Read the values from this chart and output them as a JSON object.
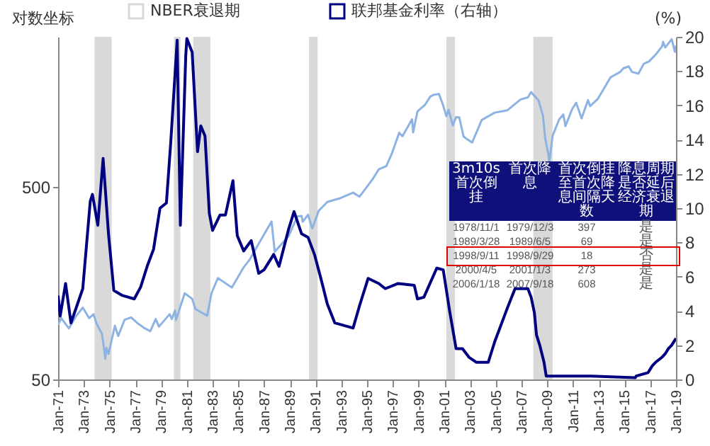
{
  "chart_data": {
    "type": "line",
    "ylabel": "对数坐标",
    "y2label": "(%)",
    "legend": "top",
    "log": "y",
    "xlim": [
      "1971-01",
      "2019-01"
    ],
    "xticks": [
      {
        "value": "1971-01",
        "label": "Jan-71"
      },
      {
        "value": "1973-01",
        "label": "Jan-73"
      },
      {
        "value": "1975-01",
        "label": "Jan-75"
      },
      {
        "value": "1977-01",
        "label": "Jan-77"
      },
      {
        "value": "1979-01",
        "label": "Jan-79"
      },
      {
        "value": "1981-01",
        "label": "Jan-81"
      },
      {
        "value": "1983-01",
        "label": "Jan-83"
      },
      {
        "value": "1985-01",
        "label": "Jan-85"
      },
      {
        "value": "1987-01",
        "label": "Jan-87"
      },
      {
        "value": "1989-01",
        "label": "Jan-89"
      },
      {
        "value": "1991-01",
        "label": "Jan-91"
      },
      {
        "value": "1993-01",
        "label": "Jan-93"
      },
      {
        "value": "1995-01",
        "label": "Jan-95"
      },
      {
        "value": "1997-01",
        "label": "Jan-97"
      },
      {
        "value": "1999-01",
        "label": "Jan-99"
      },
      {
        "value": "2001-01",
        "label": "Jan-01"
      },
      {
        "value": "2003-01",
        "label": "Jan-03"
      },
      {
        "value": "2005-01",
        "label": "Jan-05"
      },
      {
        "value": "2007-01",
        "label": "Jan-07"
      },
      {
        "value": "2009-01",
        "label": "Jan-09"
      },
      {
        "value": "2011-01",
        "label": "Jan-11"
      },
      {
        "value": "2013-01",
        "label": "Jan-13"
      },
      {
        "value": "2015-01",
        "label": "Jan-15"
      },
      {
        "value": "2017-01",
        "label": "Jan-17"
      },
      {
        "value": "2019-01",
        "label": "Jan-19"
      }
    ],
    "ylim": [
      50,
      3000
    ],
    "yticks": [
      50,
      500
    ],
    "y2lim": [
      0,
      20
    ],
    "y2ticks": [
      0,
      2,
      4,
      6,
      8,
      10,
      12,
      14,
      16,
      18,
      20
    ],
    "bands": [
      {
        "axis": "x",
        "from": "1973-11",
        "to": "1975-03",
        "label": "NBER衰退期",
        "color": "#d9d9d9"
      },
      {
        "axis": "x",
        "from": "1980-01",
        "to": "1980-07",
        "color": "#d9d9d9"
      },
      {
        "axis": "x",
        "from": "1981-07",
        "to": "1982-11",
        "color": "#d9d9d9"
      },
      {
        "axis": "x",
        "from": "1990-07",
        "to": "1991-03",
        "color": "#d9d9d9"
      },
      {
        "axis": "x",
        "from": "2001-03",
        "to": "2001-11",
        "color": "#d9d9d9"
      },
      {
        "axis": "x",
        "from": "2007-12",
        "to": "2009-06",
        "color": "#d9d9d9"
      }
    ],
    "series": [
      {
        "color": "#8db3e2",
        "x": [
          "1971-01",
          "1971-04",
          "1971-11",
          "1972-06",
          "1972-12",
          "1973-06",
          "1973-10",
          "1974-01",
          "1974-06",
          "1974-09",
          "1974-10",
          "1974-12",
          "1975-06",
          "1975-09",
          "1976-03",
          "1976-09",
          "1977-03",
          "1977-10",
          "1978-03",
          "1978-08",
          "1978-11",
          "1979-09",
          "1979-11",
          "1980-02",
          "1980-03",
          "1980-11",
          "1981-06",
          "1981-09",
          "1982-03",
          "1982-08",
          "1982-12",
          "1983-06",
          "1984-07",
          "1985-06",
          "1985-12",
          "1986-08",
          "1987-08",
          "1987-11",
          "1988-12",
          "1989-08",
          "1989-12",
          "1990-01",
          "1990-06",
          "1990-10",
          "1991-04",
          "1991-12",
          "1992-12",
          "1993-12",
          "1994-06",
          "1995-06",
          "1995-12",
          "1996-07",
          "1996-12",
          "1997-07",
          "1997-10",
          "1998-07",
          "1998-08",
          "1998-12",
          "1999-07",
          "1999-12",
          "2000-03",
          "2000-08",
          "2000-12",
          "2001-03",
          "2001-05",
          "2001-09",
          "2001-12",
          "2002-03",
          "2002-07",
          "2002-10",
          "2003-03",
          "2003-12",
          "2004-12",
          "2005-12",
          "2006-12",
          "2007-07",
          "2007-10",
          "2008-05",
          "2008-09",
          "2008-11",
          "2009-02",
          "2009-03",
          "2009-06",
          "2009-12",
          "2010-04",
          "2010-06",
          "2010-12",
          "2011-04",
          "2011-09",
          "2012-03",
          "2012-05",
          "2012-12",
          "2013-12",
          "2014-09",
          "2014-12",
          "2015-05",
          "2015-08",
          "2016-02",
          "2016-07",
          "2016-12",
          "2017-06",
          "2017-12",
          "2018-01",
          "2018-03",
          "2018-09",
          "2018-12",
          "2019-01"
        ],
        "values": [
          96,
          104,
          92,
          107,
          118,
          104,
          109,
          97,
          86,
          64,
          73,
          68,
          95,
          84,
          102,
          105,
          98,
          92,
          89,
          103,
          94,
          109,
          103,
          114,
          102,
          140,
          131,
          116,
          111,
          107,
          140,
          168,
          150,
          191,
          211,
          253,
          330,
          230,
          278,
          351,
          353,
          329,
          358,
          304,
          375,
          417,
          436,
          466,
          444,
          545,
          616,
          640,
          740,
          954,
          914,
          1120,
          957,
          1229,
          1329,
          1469,
          1499,
          1517,
          1320,
          1160,
          1256,
          1041,
          1148,
          1147,
          912,
          885,
          848,
          1112,
          1212,
          1248,
          1418,
          1455,
          1549,
          1400,
          1166,
          896,
          735,
          676,
          919,
          1115,
          1187,
          1031,
          1258,
          1364,
          1131,
          1408,
          1310,
          1426,
          1848,
          1972,
          2059,
          2107,
          1972,
          1932,
          2174,
          2239,
          2423,
          2674,
          2824,
          2641,
          2914,
          2507,
          2704
        ]
      },
      {
        "name": "联邦基金利率（右轴）",
        "color": "#000080",
        "axis": "y2",
        "x": [
          "1971-01",
          "1971-03",
          "1971-08",
          "1972-01",
          "1972-12",
          "1973-07",
          "1973-09",
          "1974-02",
          "1974-07",
          "1974-12",
          "1975-05",
          "1976-01",
          "1976-12",
          "1977-06",
          "1977-12",
          "1978-06",
          "1978-12",
          "1979-06",
          "1979-10",
          "1980-04",
          "1980-07",
          "1980-12",
          "1981-01",
          "1981-06",
          "1981-11",
          "1982-02",
          "1982-06",
          "1982-10",
          "1983-01",
          "1983-08",
          "1984-01",
          "1984-08",
          "1984-12",
          "1985-06",
          "1986-01",
          "1986-08",
          "1987-01",
          "1987-10",
          "1988-03",
          "1988-12",
          "1989-05",
          "1989-12",
          "1990-06",
          "1990-12",
          "1991-06",
          "1991-12",
          "1992-07",
          "1993-12",
          "1994-06",
          "1995-02",
          "1995-12",
          "1996-06",
          "1997-06",
          "1998-09",
          "1998-12",
          "1999-06",
          "2000-06",
          "2000-12",
          "2001-01",
          "2001-06",
          "2001-12",
          "2002-06",
          "2002-12",
          "2003-07",
          "2004-06",
          "2004-12",
          "2005-12",
          "2006-07",
          "2007-07",
          "2007-10",
          "2008-01",
          "2008-03",
          "2008-06",
          "2008-10",
          "2008-12",
          "2012-06",
          "2015-11",
          "2015-12",
          "2016-11",
          "2016-12",
          "2017-03",
          "2017-06",
          "2017-12",
          "2018-03",
          "2018-06",
          "2018-09",
          "2018-12",
          "2019-01"
        ],
        "values": [
          4.9,
          3.7,
          5.6,
          3.3,
          5.3,
          10.4,
          10.8,
          9.0,
          12.9,
          8.5,
          5.2,
          4.9,
          4.7,
          5.4,
          6.6,
          7.6,
          10.0,
          10.3,
          13.8,
          19.8,
          9.0,
          18.9,
          19.9,
          19.1,
          13.3,
          14.8,
          14.2,
          9.7,
          8.7,
          9.6,
          9.6,
          11.6,
          8.4,
          7.5,
          8.1,
          6.2,
          6.4,
          7.3,
          6.6,
          8.8,
          9.8,
          8.5,
          8.3,
          7.3,
          5.9,
          4.4,
          3.3,
          3.0,
          4.3,
          5.9,
          5.6,
          5.3,
          5.6,
          5.5,
          4.7,
          4.8,
          6.5,
          6.4,
          6.0,
          4.0,
          1.8,
          1.8,
          1.3,
          1.0,
          1.0,
          2.2,
          4.2,
          5.3,
          5.3,
          4.8,
          3.9,
          2.6,
          2.0,
          1.0,
          0.2,
          0.2,
          0.1,
          0.2,
          0.4,
          0.5,
          0.8,
          1.0,
          1.3,
          1.5,
          1.8,
          2.0,
          2.3,
          2.4
        ]
      }
    ],
    "annotations": [
      "3m10s首次倒挂",
      "首次降息",
      "首次倒挂至首次降息间隔天数",
      "降息周期是否延后经济衰退期",
      "1978/11/1",
      "1979/12/3",
      "397",
      "是",
      "1989/3/28",
      "1989/6/5",
      "69",
      "是",
      "1998/9/11",
      "1998/9/29",
      "18",
      "否",
      "2000/4/5",
      "2001/1/3",
      "273",
      "是",
      "2006/1/18",
      "2007/9/18",
      "608",
      "是"
    ]
  }
}
